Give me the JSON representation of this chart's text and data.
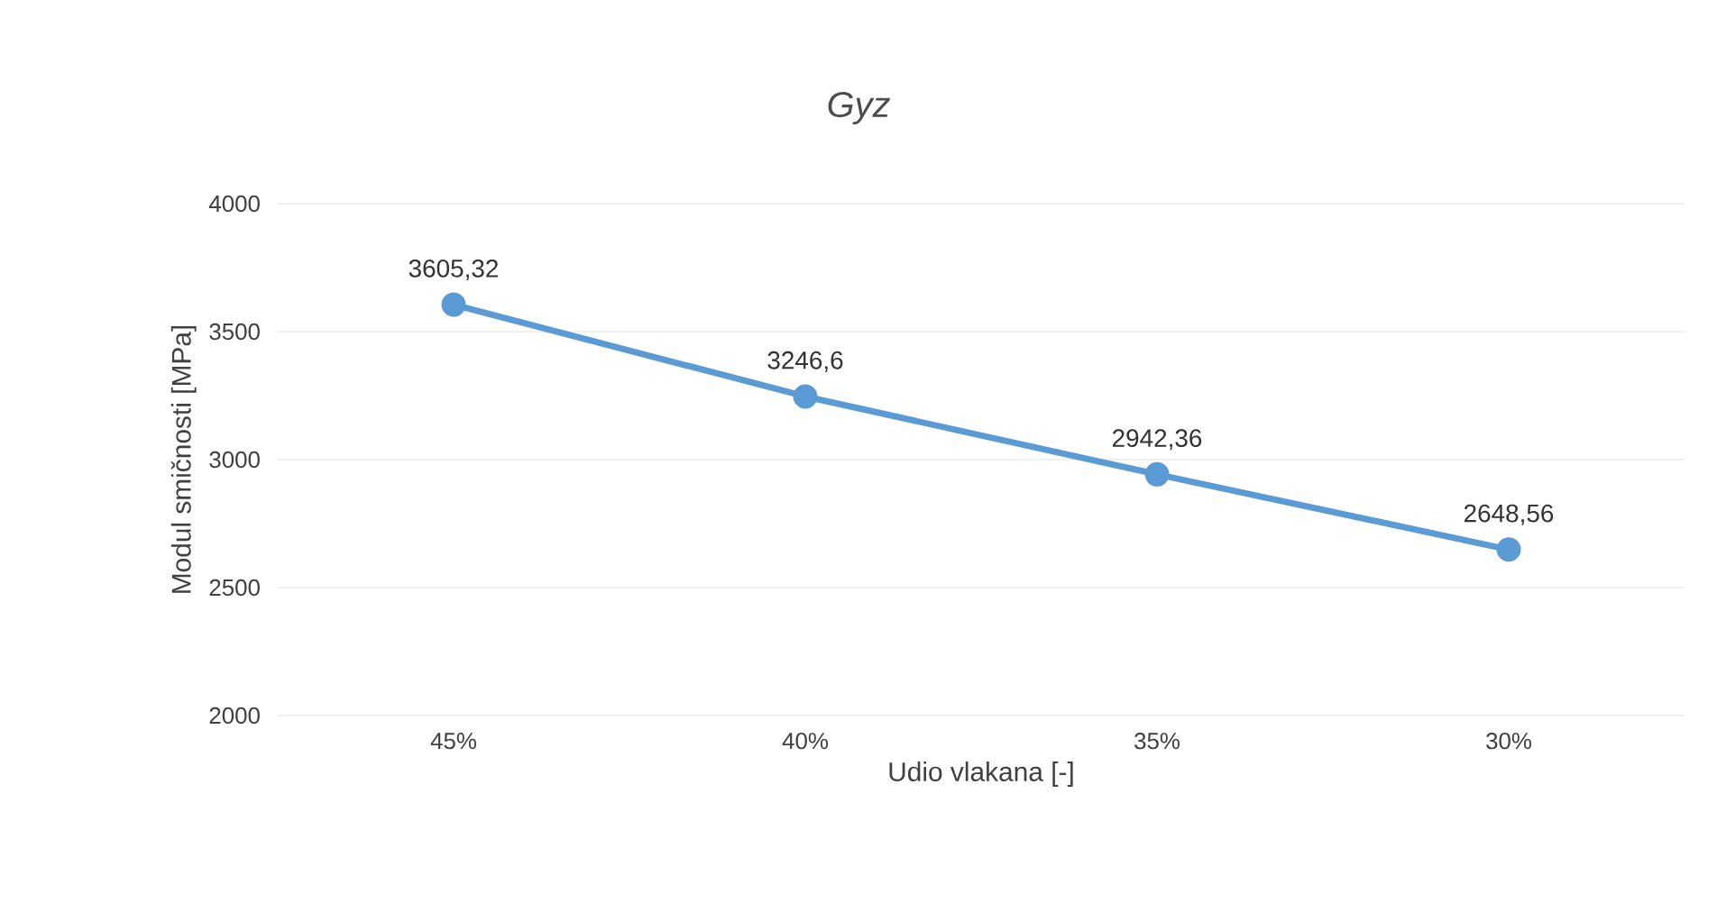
{
  "chart_data": {
    "type": "line",
    "title": "Gyz",
    "xlabel": "Udio vlakana [-]",
    "ylabel": "Modul smičnosti [MPa]",
    "categories": [
      "45%",
      "40%",
      "35%",
      "30%"
    ],
    "series": [
      {
        "color": "#5b9bd5",
        "values": [
          3605.32,
          3246.6,
          2942.36,
          2648.56
        ],
        "value_labels": [
          "3605,32",
          "3246,6",
          "2942,36",
          "2648,56"
        ]
      }
    ],
    "ylim": [
      2000,
      4000
    ],
    "yticks": [
      2000,
      2500,
      3000,
      3500,
      4000
    ],
    "grid": "y",
    "marker": "circle",
    "line_style": "solid"
  }
}
